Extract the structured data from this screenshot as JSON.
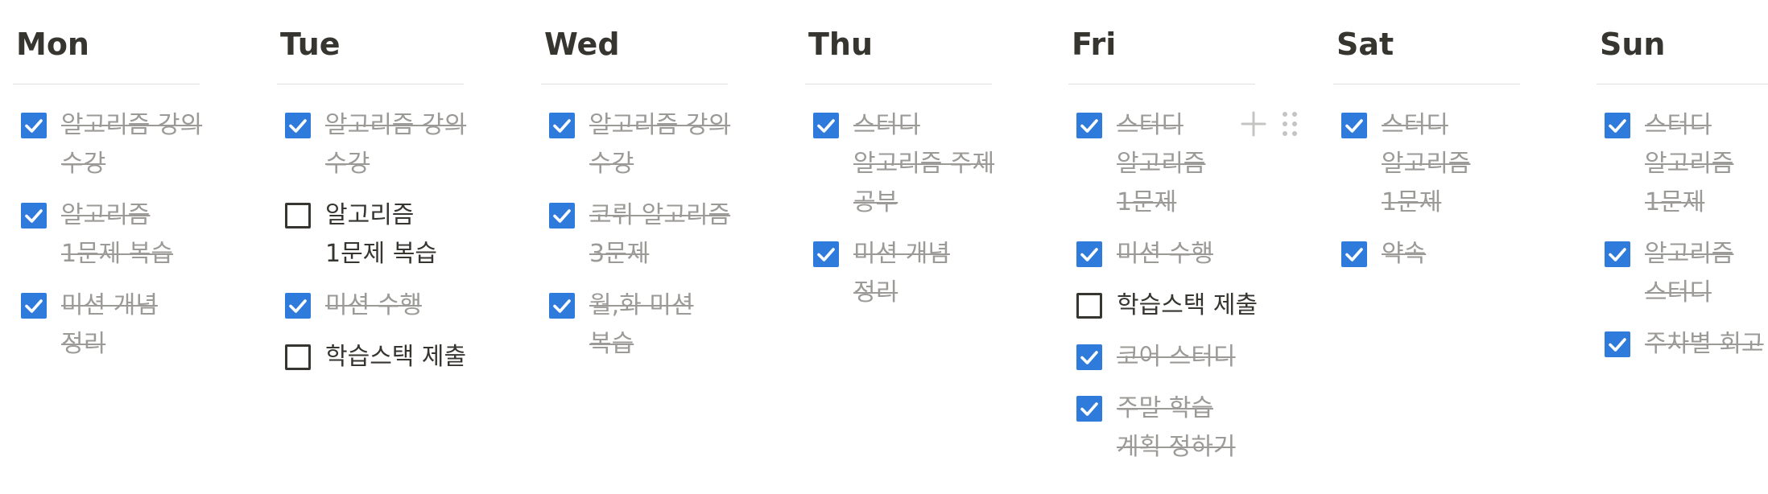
{
  "days": [
    {
      "name": "Mon",
      "todos": [
        {
          "text": "알고리즘 강의 수강",
          "checked": true
        },
        {
          "text": "알고리즘 1문제 복습",
          "checked": true
        },
        {
          "text": "미션 개념 정리",
          "checked": true
        }
      ]
    },
    {
      "name": "Tue",
      "todos": [
        {
          "text": "알고리즘 강의 수강",
          "checked": true
        },
        {
          "text": "알고리즘 1문제 복습",
          "checked": false
        },
        {
          "text": "미션 수행",
          "checked": true
        },
        {
          "text": "학습스택 제출",
          "checked": false
        }
      ]
    },
    {
      "name": "Wed",
      "todos": [
        {
          "text": "알고리즘 강의 수강",
          "checked": true
        },
        {
          "text": "코뤼 알고리즘 3문제",
          "checked": true
        },
        {
          "text": "월,화 미션 복습",
          "checked": true
        }
      ]
    },
    {
      "name": "Thu",
      "todos": [
        {
          "text": "스터디 알고리즘 주제 공부",
          "checked": true
        },
        {
          "text": "미션 개념 정리",
          "checked": true
        }
      ]
    },
    {
      "name": "Fri",
      "todos": [
        {
          "text": "스터디 알고리즘 1문제",
          "checked": true
        },
        {
          "text": "미션 수행",
          "checked": true
        },
        {
          "text": "학습스택 제출",
          "checked": false
        },
        {
          "text": "코어 스터디",
          "checked": true
        },
        {
          "text": "주말 학습 계획 정하기",
          "checked": true
        }
      ]
    },
    {
      "name": "Sat",
      "todos": [
        {
          "text": "스터디 알고리즘 1문제",
          "checked": true
        },
        {
          "text": "약속",
          "checked": true
        }
      ]
    },
    {
      "name": "Sun",
      "todos": [
        {
          "text": "스터디 알고리즘 1문제",
          "checked": true
        },
        {
          "text": "알고리즘 스터디",
          "checked": true
        },
        {
          "text": "주차별 회고",
          "checked": true
        }
      ]
    }
  ],
  "icons": {
    "add_block": "plus-icon",
    "drag_handle": "drag-handle-icon",
    "checkbox_checked": "check-icon"
  },
  "colors": {
    "checkbox_checked_bg": "#2f7bdc",
    "checked_text": "#9b9a97",
    "unchecked_text": "#37352f",
    "divider": "#e0dfdc",
    "control_icon": "#c4c4c2"
  }
}
